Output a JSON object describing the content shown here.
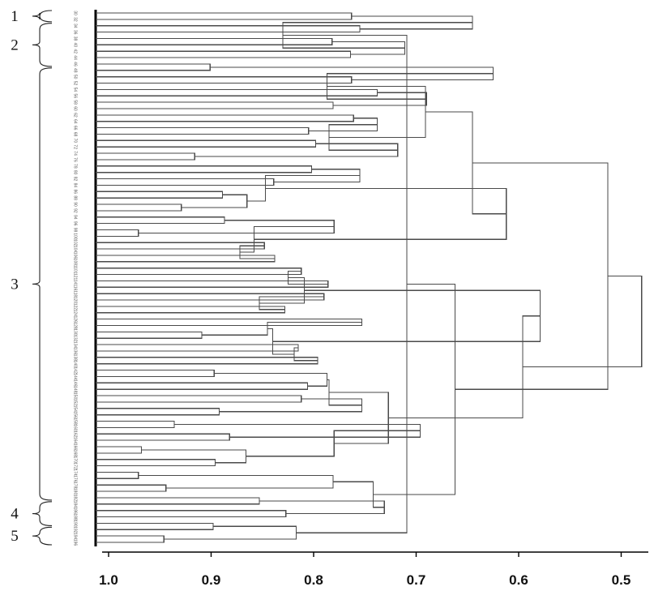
{
  "chart_data": {
    "type": "dendrogram",
    "title": "",
    "xlabel": "",
    "ylabel": "",
    "x_range": [
      1.0,
      0.48
    ],
    "x_ticks": [
      1.0,
      0.9,
      0.8,
      0.7,
      0.6,
      0.5
    ],
    "x_tick_labels": [
      "1.0",
      "0.9",
      "0.8",
      "0.7",
      "0.6",
      "0.5"
    ],
    "leaf_count": 84,
    "leaves": [
      "30",
      "32",
      "34",
      "36",
      "38",
      "40",
      "42",
      "44",
      "46",
      "48",
      "50",
      "52",
      "54",
      "56",
      "58",
      "60",
      "62",
      "64",
      "66",
      "68",
      "70",
      "72",
      "74",
      "76",
      "78",
      "80",
      "82",
      "84",
      "86",
      "88",
      "90",
      "92",
      "94",
      "96",
      "98",
      "100",
      "102",
      "104",
      "106",
      "108",
      "110",
      "112",
      "114",
      "116",
      "118",
      "120",
      "122",
      "124",
      "126",
      "128",
      "130",
      "132",
      "134",
      "136",
      "138",
      "140",
      "142",
      "144",
      "146",
      "148",
      "150",
      "152",
      "154",
      "156",
      "158",
      "160",
      "162",
      "164",
      "166",
      "168",
      "170",
      "172",
      "174",
      "176",
      "178",
      "180",
      "182",
      "184",
      "186",
      "188",
      "190",
      "192",
      "194",
      "196"
    ],
    "groups": [
      {
        "label": "1",
        "first_leaf": 0,
        "last_leaf": 1
      },
      {
        "label": "2",
        "first_leaf": 2,
        "last_leaf": 8
      },
      {
        "label": "3",
        "first_leaf": 9,
        "last_leaf": 76
      },
      {
        "label": "4",
        "first_leaf": 77,
        "last_leaf": 80
      },
      {
        "label": "5",
        "first_leaf": 81,
        "last_leaf": 83
      }
    ],
    "merges": [
      [
        0,
        1,
        0.763
      ],
      [
        2,
        3,
        0.755
      ],
      [
        4,
        5,
        0.782
      ],
      [
        6,
        7,
        0.764
      ],
      [
        8,
        9,
        0.901
      ],
      [
        10,
        11,
        0.763
      ],
      [
        12,
        13,
        0.738
      ],
      [
        14,
        15,
        0.781
      ],
      [
        16,
        17,
        0.761
      ],
      [
        18,
        19,
        0.805
      ],
      [
        20,
        21,
        0.798
      ],
      [
        22,
        23,
        0.916
      ],
      [
        24,
        25,
        0.802
      ],
      [
        26,
        27,
        0.839
      ],
      [
        28,
        29,
        0.889
      ],
      [
        30,
        31,
        0.929
      ],
      [
        32,
        33,
        0.887
      ],
      [
        34,
        35,
        0.971
      ],
      [
        36,
        37,
        0.848
      ],
      [
        38,
        39,
        0.838
      ],
      [
        40,
        41,
        0.812
      ],
      [
        42,
        43,
        0.786
      ],
      [
        44,
        45,
        0.79
      ],
      [
        46,
        47,
        0.828
      ],
      [
        48,
        49,
        0.753
      ],
      [
        50,
        51,
        0.909
      ],
      [
        52,
        53,
        0.815
      ],
      [
        54,
        55,
        0.796
      ],
      [
        56,
        57,
        0.897
      ],
      [
        58,
        59,
        0.806
      ],
      [
        60,
        61,
        0.812
      ],
      [
        62,
        63,
        0.892
      ],
      [
        64,
        65,
        0.936
      ],
      [
        66,
        67,
        0.882
      ],
      [
        68,
        69,
        0.968
      ],
      [
        70,
        71,
        0.896
      ],
      [
        72,
        73,
        0.971
      ],
      [
        74,
        75,
        0.944
      ],
      [
        76,
        77,
        0.853
      ],
      [
        78,
        79,
        0.827
      ],
      [
        80,
        81,
        0.898
      ],
      [
        82,
        83,
        0.946
      ],
      [
        84,
        85,
        0.645
      ],
      [
        86,
        87,
        0.711
      ],
      [
        88,
        89,
        0.625
      ],
      [
        90,
        91,
        0.69
      ],
      [
        92,
        93,
        0.738
      ],
      [
        94,
        95,
        0.718
      ],
      [
        96,
        97,
        0.755
      ],
      [
        98,
        99,
        0.865
      ],
      [
        100,
        101,
        0.78
      ],
      [
        102,
        103,
        0.872
      ],
      [
        104,
        105,
        0.825
      ],
      [
        106,
        107,
        0.853
      ],
      [
        108,
        109,
        0.845
      ],
      [
        110,
        111,
        0.819
      ],
      [
        112,
        113,
        0.787
      ],
      [
        114,
        115,
        0.753
      ],
      [
        116,
        117,
        0.696
      ],
      [
        118,
        119,
        0.866
      ],
      [
        120,
        121,
        0.781
      ],
      [
        122,
        123,
        0.731
      ],
      [
        124,
        125,
        0.817
      ],
      [
        126,
        127,
        0.83
      ],
      [
        128,
        129,
        0.787
      ],
      [
        130,
        131,
        0.785
      ],
      [
        132,
        133,
        0.847
      ],
      [
        134,
        135,
        0.858
      ],
      [
        136,
        137,
        0.809
      ],
      [
        138,
        139,
        0.84
      ],
      [
        140,
        141,
        0.785
      ],
      [
        142,
        143,
        0.78
      ],
      [
        144,
        145,
        0.742
      ],
      [
        146,
        147,
        0.709
      ],
      [
        148,
        149,
        0.691
      ],
      [
        150,
        151,
        0.612
      ],
      [
        152,
        153,
        0.579
      ],
      [
        154,
        155,
        0.727
      ],
      [
        156,
        157,
        0.662
      ],
      [
        158,
        159,
        0.645
      ],
      [
        160,
        161,
        0.596
      ],
      [
        162,
        163,
        0.513
      ],
      [
        164,
        165,
        0.48
      ]
    ]
  }
}
